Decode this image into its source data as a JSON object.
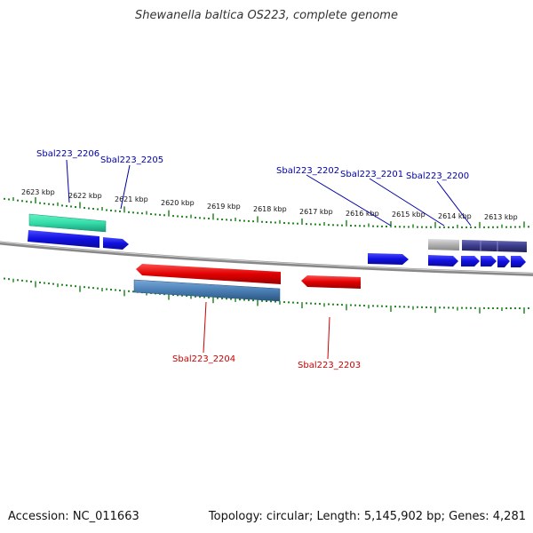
{
  "title": "Shewanella baltica OS223, complete genome",
  "footer": {
    "accession": "Accession: NC_011663",
    "summary": "Topology: circular; Length: 5,145,902 bp; Genes: 4,281"
  },
  "scale_labels": [
    "2623 kbp",
    "2622 kbp",
    "2621 kbp",
    "2620 kbp",
    "2619 kbp",
    "2618 kbp",
    "2617 kbp",
    "2616 kbp",
    "2615 kbp",
    "2614 kbp",
    "2613 kbp"
  ],
  "gene_labels": {
    "top": [
      "Sbal223_2206",
      "Sbal223_2205",
      "Sbal223_2202",
      "Sbal223_2201",
      "Sbal223_2200"
    ],
    "bottom": [
      "Sbal223_2204",
      "Sbal223_2203"
    ]
  },
  "colors": {
    "forward_label": "#0000aa",
    "reverse_label": "#cc0000",
    "forward_gene": "#1010e0",
    "reverse_gene": "#e00000",
    "rna_gene": "#33ddaa",
    "cds_feature": "#4a7fb5",
    "pseudo_gene": "#b0b0b0",
    "operon_gene": "#3a3a8a",
    "tick": "#228822",
    "backbone": "#888888"
  }
}
